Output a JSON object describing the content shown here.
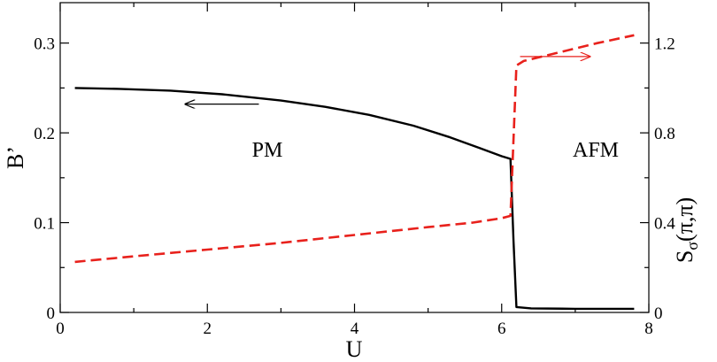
{
  "chart_data": {
    "type": "line",
    "xlabel": "U",
    "ylabel_left": "B’",
    "ylabel_right": {
      "base": "S",
      "sub": "σ",
      "rest": "(π,π)"
    },
    "xlim": [
      0,
      8
    ],
    "ylim_left": [
      0,
      0.345
    ],
    "ylim_right": [
      0,
      1.38
    ],
    "x_ticks": [
      "0",
      "2",
      "4",
      "6",
      "8"
    ],
    "y_left_ticks": [
      "0",
      "0.1",
      "0.2",
      "0.3"
    ],
    "y_right_ticks": [
      "0",
      "0.4",
      "0.8",
      "1.2"
    ],
    "annotations": {
      "left_region": "PM",
      "right_region": "AFM"
    },
    "series": [
      {
        "axis": "left",
        "color": "#000000",
        "style": "solid",
        "x": [
          0.2,
          0.8,
          1.5,
          2.2,
          3.0,
          3.6,
          4.2,
          4.8,
          5.3,
          5.7,
          6.0,
          6.12,
          6.16,
          6.2,
          6.4,
          7.0,
          7.5,
          7.8
        ],
        "y": [
          0.25,
          0.249,
          0.247,
          0.243,
          0.236,
          0.229,
          0.22,
          0.208,
          0.195,
          0.183,
          0.174,
          0.171,
          0.08,
          0.006,
          0.0045,
          0.004,
          0.004,
          0.004
        ]
      },
      {
        "axis": "right",
        "color": "#e8211c",
        "style": "dashed",
        "x": [
          0.2,
          1.0,
          2.0,
          3.0,
          4.0,
          5.0,
          5.6,
          6.0,
          6.12,
          6.2,
          6.3,
          6.8,
          7.3,
          7.8
        ],
        "y": [
          0.225,
          0.25,
          0.28,
          0.31,
          0.345,
          0.38,
          0.4,
          0.42,
          0.43,
          1.1,
          1.12,
          1.16,
          1.2,
          1.235
        ]
      }
    ],
    "arrows": [
      {
        "axis": "left",
        "color": "#000000",
        "from": [
          2.7,
          0.232
        ],
        "to": [
          1.7,
          0.232
        ]
      },
      {
        "axis": "right",
        "color": "#e8211c",
        "from": [
          6.25,
          1.14
        ],
        "to": [
          7.2,
          1.14
        ]
      }
    ]
  }
}
